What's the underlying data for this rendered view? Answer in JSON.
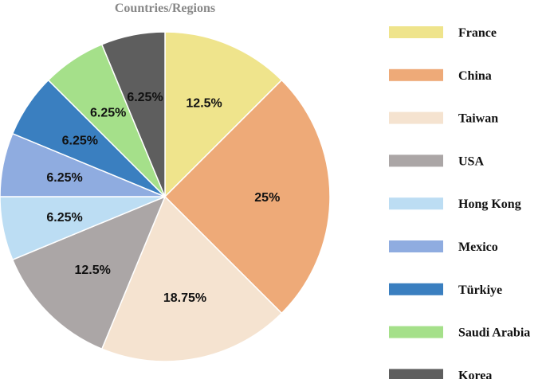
{
  "chart_data": {
    "type": "pie",
    "title": "Countries/Regions",
    "start_angle_deg": 90,
    "direction": "clockwise",
    "legend_position": "right",
    "slices": [
      {
        "label": "France",
        "value": 12.5,
        "display": "12.5%",
        "color": "#EFE48C"
      },
      {
        "label": "China",
        "value": 25,
        "display": "25%",
        "color": "#EEAA78"
      },
      {
        "label": "Taiwan",
        "value": 18.75,
        "display": "18.75%",
        "color": "#F5E3D0"
      },
      {
        "label": "USA",
        "value": 12.5,
        "display": "12.5%",
        "color": "#ABA6A6"
      },
      {
        "label": "Hong Kong",
        "value": 6.25,
        "display": "6.25%",
        "color": "#BCDDF3"
      },
      {
        "label": "Mexico",
        "value": 6.25,
        "display": "6.25%",
        "color": "#8FACE0"
      },
      {
        "label": "Türkiye",
        "value": 6.25,
        "display": "6.25%",
        "color": "#3A7FC0"
      },
      {
        "label": "Saudi Arabia",
        "value": 6.25,
        "display": "6.25%",
        "color": "#A5E08A"
      },
      {
        "label": "Korea",
        "value": 6.25,
        "display": "6.25%",
        "color": "#5E5E5E"
      }
    ]
  }
}
